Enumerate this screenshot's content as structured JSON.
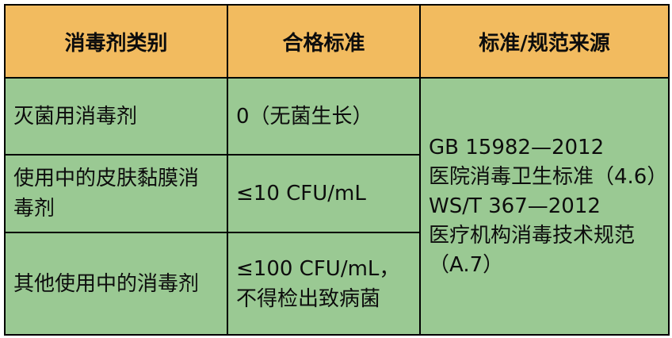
{
  "colors": {
    "header_bg": "#F2BB5F",
    "body_bg": "#9AC993",
    "border": "#000000"
  },
  "chart_data": {
    "type": "table",
    "columns": [
      "消毒剂类别",
      "合格标准",
      "标准/规范来源"
    ],
    "rows": [
      {
        "category": "灭菌用消毒剂",
        "standard": "0（无菌生长）"
      },
      {
        "category": "使用中的皮肤黏膜消毒剂",
        "standard": "≤10 CFU/mL"
      },
      {
        "category": "其他使用中的消毒剂",
        "standard": "≤100 CFU/mL，不得检出致病菌"
      }
    ],
    "source_merged": "GB 15982—2012 医院消毒卫生标准（4.6） WS/T 367—2012 医疗机构消毒技术规范（A.7）",
    "layout": {
      "source_column_rowspan": 3,
      "grid": "on",
      "header_style": "bold-centered"
    }
  },
  "display": {
    "header": {
      "category": "消毒剂类别",
      "standard": "合格标准",
      "source": "标准/规范来源"
    },
    "rows": [
      {
        "category_lines": [
          "灭菌用消毒剂"
        ],
        "standard_lines": [
          "0（无菌生长）"
        ]
      },
      {
        "category_lines": [
          "使用中的皮肤黏膜消",
          "毒剂"
        ],
        "standard_lines": [
          "≤10 CFU/mL"
        ]
      },
      {
        "category_lines": [
          "其他使用中的消毒剂"
        ],
        "standard_lines": [
          "≤100 CFU/mL，",
          "不得检出致病菌"
        ]
      }
    ],
    "source_lines": [
      "GB 15982—2012",
      "医院消毒卫生标准（4.6）",
      "WS/T 367—2012",
      "医疗机构消毒技术规范",
      "（A.7）"
    ]
  }
}
